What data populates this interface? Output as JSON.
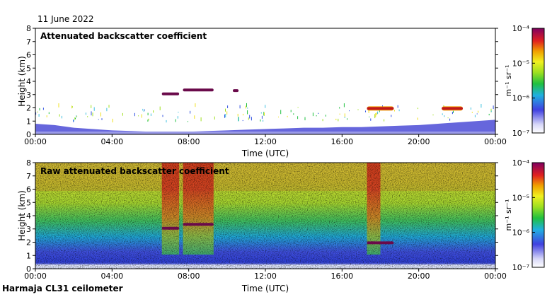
{
  "header": {
    "date": "11 June 2022",
    "site": "Harmaja CL31 ceilometer"
  },
  "colors": {
    "sky_low": "#4b4bd6",
    "cloud_dark": "#6a0a4a",
    "cloud_mid": "#c0181a",
    "cloud_edge": "#f0a000",
    "noise_high": "#d02a20",
    "noise_mid": "#9ad020",
    "noise_low": "#3050e0"
  },
  "chart_data": [
    {
      "type": "heatmap",
      "title": "Attenuated backscatter coefficient",
      "xlabel": "Time (UTC)",
      "ylabel": "Height (km)",
      "x_ticks": [
        "00:00",
        "04:00",
        "08:00",
        "12:00",
        "16:00",
        "20:00",
        "00:00"
      ],
      "y_ticks": [
        "0",
        "1",
        "2",
        "3",
        "4",
        "5",
        "6",
        "7",
        "8"
      ],
      "xlim_hours": [
        0,
        24
      ],
      "ylim_km": [
        0,
        8
      ],
      "colorbar": {
        "label": "m⁻¹ sr⁻¹",
        "ticks": [
          "10⁻⁷",
          "10⁻⁶",
          "10⁻⁵",
          "10⁻⁴"
        ],
        "scale": "log"
      },
      "boundary_layer_top_km": [
        0.8,
        0.7,
        0.5,
        0.4,
        0.3,
        0.25,
        0.2,
        0.2,
        0.2,
        0.25,
        0.3,
        0.35,
        0.4,
        0.45,
        0.5,
        0.5,
        0.55,
        0.55,
        0.6,
        0.65,
        0.7,
        0.8,
        0.9,
        1.0,
        1.1
      ],
      "cloud_layers": [
        {
          "start_h": 6.6,
          "end_h": 7.5,
          "height_km": 3.05,
          "color": "dark"
        },
        {
          "start_h": 7.7,
          "end_h": 9.3,
          "height_km": 3.35,
          "color": "dark"
        },
        {
          "start_h": 10.3,
          "end_h": 10.6,
          "height_km": 3.3,
          "color": "dark"
        },
        {
          "start_h": 17.3,
          "end_h": 18.7,
          "height_km": 1.95,
          "color": "mid"
        },
        {
          "start_h": 21.2,
          "end_h": 22.3,
          "height_km": 1.95,
          "color": "mid"
        }
      ]
    },
    {
      "type": "heatmap",
      "title": "Raw attenuated backscatter coefficient",
      "xlabel": "Time (UTC)",
      "ylabel": "Height (km)",
      "x_ticks": [
        "00:00",
        "04:00",
        "08:00",
        "12:00",
        "16:00",
        "20:00",
        "00:00"
      ],
      "y_ticks": [
        "0",
        "1",
        "2",
        "3",
        "4",
        "5",
        "6",
        "7",
        "8"
      ],
      "xlim_hours": [
        0,
        24
      ],
      "ylim_km": [
        0,
        8
      ],
      "colorbar": {
        "label": "m⁻¹ sr⁻¹",
        "ticks": [
          "10⁻⁷",
          "10⁻⁶",
          "10⁻⁵",
          "10⁻⁴"
        ],
        "scale": "log"
      },
      "high_signal_periods": [
        {
          "start_h": 6.6,
          "end_h": 7.5
        },
        {
          "start_h": 7.7,
          "end_h": 9.3
        },
        {
          "start_h": 17.3,
          "end_h": 18.0
        }
      ],
      "cloud_layers": [
        {
          "start_h": 6.6,
          "end_h": 7.5,
          "height_km": 3.05
        },
        {
          "start_h": 7.7,
          "end_h": 9.3,
          "height_km": 3.35
        },
        {
          "start_h": 17.3,
          "end_h": 18.7,
          "height_km": 1.95
        }
      ]
    }
  ]
}
